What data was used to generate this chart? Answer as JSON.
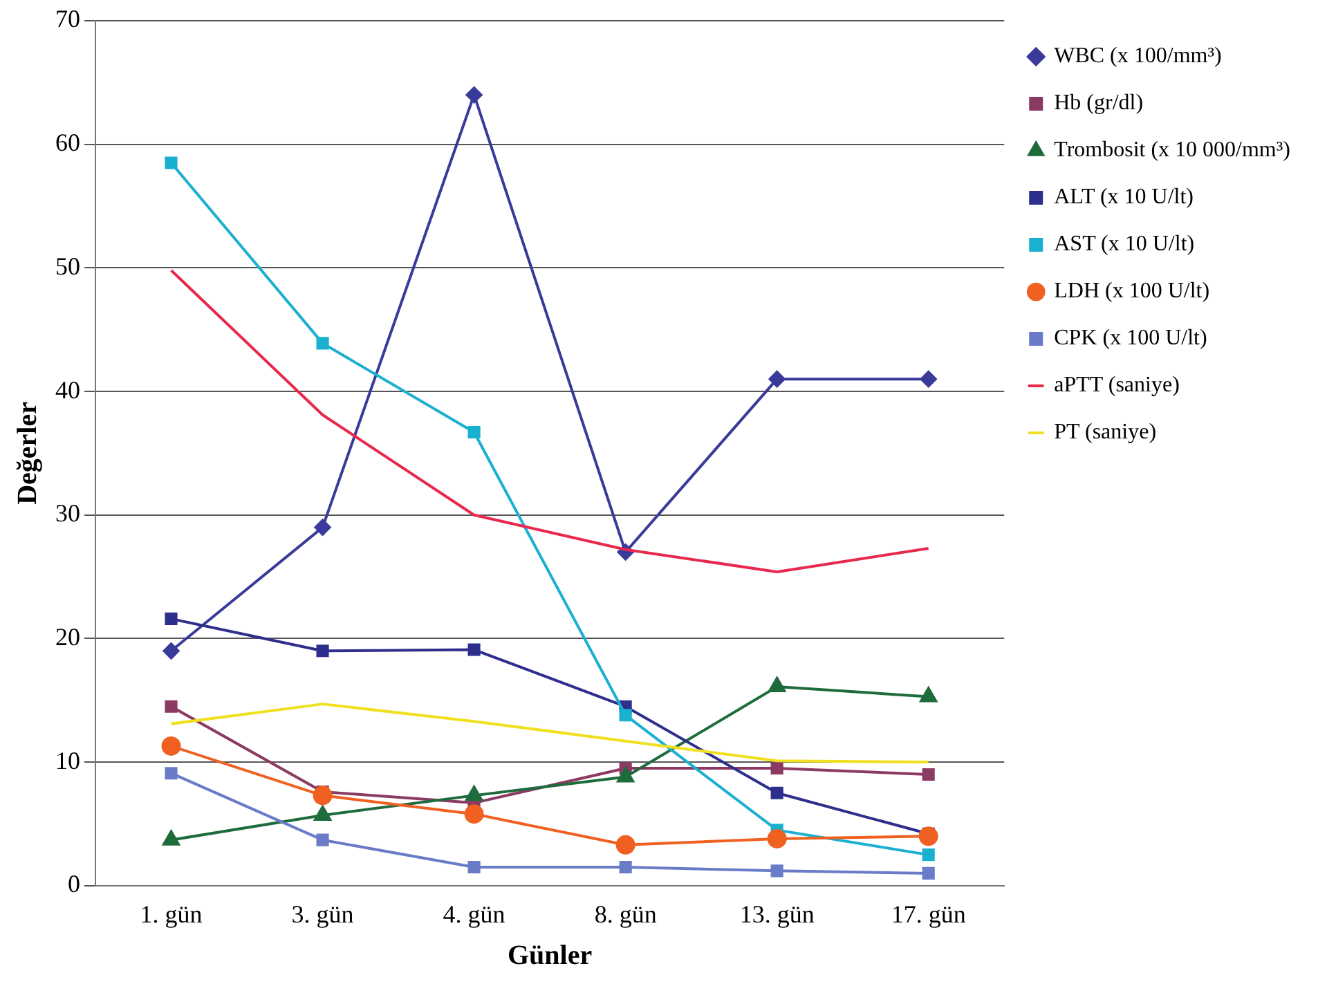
{
  "chart_data": {
    "type": "line",
    "xlabel": "Günler",
    "ylabel": "Değerler",
    "categories": [
      "1. gün",
      "3. gün",
      "4. gün",
      "8. gün",
      "13. gün",
      "17. gün"
    ],
    "ylim": [
      0,
      70
    ],
    "yticks": [
      0,
      10,
      20,
      30,
      40,
      50,
      60,
      70
    ],
    "grid": "y",
    "legend": "top right",
    "series": [
      {
        "name": "WBC (x 100/mm³)",
        "color": "#3a3a9a",
        "marker": "diamond",
        "values": [
          19,
          29,
          64,
          27,
          41,
          41
        ]
      },
      {
        "name": "Hb (gr/dl)",
        "color": "#8b3a62",
        "marker": "square",
        "values": [
          14.5,
          7.6,
          6.7,
          9.5,
          9.5,
          9
        ]
      },
      {
        "name": "Trombosit (x 10 000/mm³)",
        "color": "#1e6b3c",
        "marker": "triangle",
        "values": [
          3.7,
          5.7,
          7.3,
          8.8,
          16.1,
          15.3
        ]
      },
      {
        "name": "ALT (x 10 U/lt)",
        "color": "#2e2e8c",
        "marker": "square",
        "values": [
          21.6,
          19,
          19.1,
          14.5,
          7.5,
          4.2
        ]
      },
      {
        "name": "AST (x 10 U/lt)",
        "color": "#1ab0d0",
        "marker": "square",
        "values": [
          58.5,
          43.9,
          36.7,
          13.8,
          4.5,
          2.5
        ]
      },
      {
        "name": "LDH (x 100 U/lt)",
        "color": "#f06020",
        "marker": "circle",
        "values": [
          11.3,
          7.3,
          5.8,
          3.3,
          3.8,
          4
        ]
      },
      {
        "name": "CPK (x 100 U/lt)",
        "color": "#6a7cc8",
        "marker": "square",
        "values": [
          9.1,
          3.7,
          1.5,
          1.5,
          1.2,
          1
        ]
      },
      {
        "name": "aPTT (saniye)",
        "color": "#e8284c",
        "marker": "none",
        "values": [
          49.8,
          38.1,
          30,
          27.2,
          25.4,
          27.3
        ]
      },
      {
        "name": "PT (saniye)",
        "color": "#f0e020",
        "marker": "none",
        "values": [
          13.1,
          14.7,
          13.3,
          11.7,
          10.1,
          10
        ]
      }
    ]
  }
}
